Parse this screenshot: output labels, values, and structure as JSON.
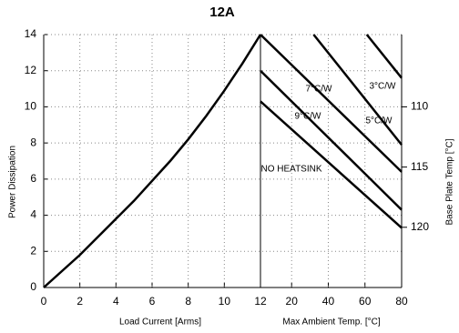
{
  "chart_data": {
    "type": "line",
    "title": "12A",
    "xlabel": "Load Current [Arms]",
    "x2label": "Max Ambient Temp. [°C]",
    "ylabel": "Power Dissipation",
    "y2label": "Base Plate Temp [°C]",
    "xlim": [
      0,
      12
    ],
    "xticks": [
      0,
      2,
      4,
      6,
      8,
      10,
      12
    ],
    "x2lim": [
      3,
      80
    ],
    "x2ticks": [
      20,
      40,
      60,
      80
    ],
    "ylim": [
      0,
      14
    ],
    "yticks": [
      0,
      2,
      4,
      6,
      8,
      10,
      12,
      14
    ],
    "y2lim": [
      125,
      104
    ],
    "y2ticks": [
      110,
      115,
      120
    ],
    "grid": true,
    "series": [
      {
        "name": "",
        "color": "#000000",
        "x": [
          0,
          1,
          2,
          3,
          4,
          5,
          6,
          7,
          8,
          9,
          10,
          11,
          12
        ],
        "values": [
          0,
          0.9,
          1.8,
          2.8,
          3.8,
          4.8,
          5.9,
          7.0,
          8.2,
          9.5,
          10.9,
          12.4,
          14
        ]
      },
      {
        "name": "NO HEATSINK",
        "color": "#000000",
        "axis": "x2",
        "x": [
          3,
          80
        ],
        "values": [
          10.3,
          3.3
        ]
      },
      {
        "name": "9°C/W",
        "color": "#000000",
        "axis": "x2",
        "x": [
          3,
          80
        ],
        "values": [
          12,
          4.3
        ]
      },
      {
        "name": "7°C/W",
        "color": "#000000",
        "axis": "x2",
        "x": [
          3,
          80
        ],
        "values": [
          14,
          6.4
        ]
      },
      {
        "name": "5°C/W",
        "color": "#000000",
        "axis": "x2",
        "x": [
          32,
          80
        ],
        "values": [
          14,
          7.9
        ]
      },
      {
        "name": "3°C/W",
        "color": "#000000",
        "axis": "x2",
        "x": [
          61,
          80
        ],
        "values": [
          14,
          11.6
        ]
      }
    ]
  }
}
